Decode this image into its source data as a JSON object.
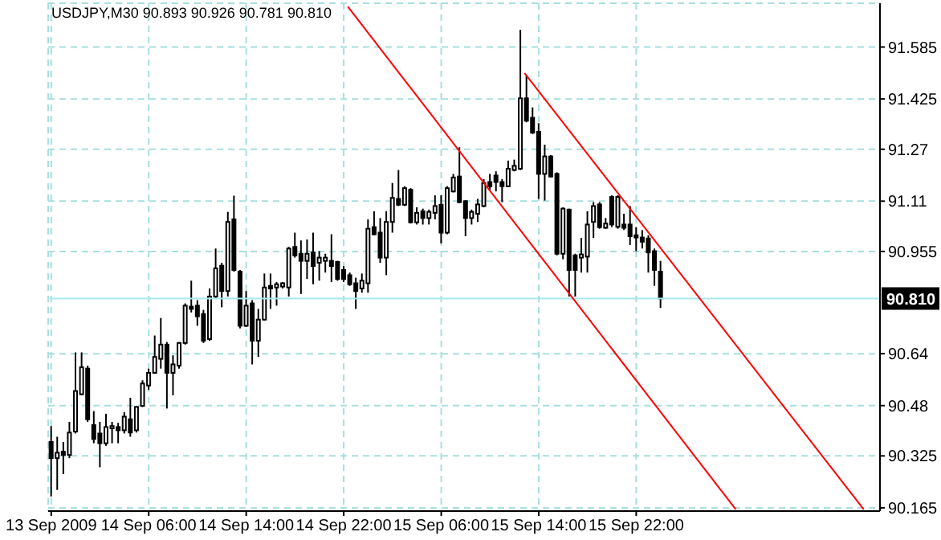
{
  "chart_data": {
    "type": "candlestick",
    "title": "USDJPY,M30 90.893 90.926 90.781 90.810",
    "color": "#000000",
    "x": [
      "2009-09-13T22:00",
      "2009-09-13T22:30",
      "2009-09-13T23:00",
      "2009-09-13T23:30",
      "2009-09-14T00:00",
      "2009-09-14T00:30",
      "2009-09-14T01:00",
      "2009-09-14T01:30",
      "2009-09-14T02:00",
      "2009-09-14T02:30",
      "2009-09-14T03:00",
      "2009-09-14T03:30",
      "2009-09-14T04:00",
      "2009-09-14T04:30",
      "2009-09-14T05:00",
      "2009-09-14T05:30",
      "2009-09-14T06:00",
      "2009-09-14T06:30",
      "2009-09-14T07:00",
      "2009-09-14T07:30",
      "2009-09-14T08:00",
      "2009-09-14T08:30",
      "2009-09-14T09:00",
      "2009-09-14T09:30",
      "2009-09-14T10:00",
      "2009-09-14T10:30",
      "2009-09-14T11:00",
      "2009-09-14T11:30",
      "2009-09-14T12:00",
      "2009-09-14T12:30",
      "2009-09-14T13:00",
      "2009-09-14T13:30",
      "2009-09-14T14:00",
      "2009-09-14T14:30",
      "2009-09-14T15:00",
      "2009-09-14T15:30",
      "2009-09-14T16:00",
      "2009-09-14T16:30",
      "2009-09-14T17:00",
      "2009-09-14T17:30",
      "2009-09-14T18:00",
      "2009-09-14T18:30",
      "2009-09-14T19:00",
      "2009-09-14T19:30",
      "2009-09-14T20:00",
      "2009-09-14T20:30",
      "2009-09-14T21:00",
      "2009-09-14T21:30",
      "2009-09-14T22:00",
      "2009-09-14T22:30",
      "2009-09-14T23:00",
      "2009-09-14T23:30",
      "2009-09-15T00:00",
      "2009-09-15T00:30",
      "2009-09-15T01:00",
      "2009-09-15T01:30",
      "2009-09-15T02:00",
      "2009-09-15T02:30",
      "2009-09-15T03:00",
      "2009-09-15T03:30",
      "2009-09-15T04:00",
      "2009-09-15T04:30",
      "2009-09-15T05:00",
      "2009-09-15T05:30",
      "2009-09-15T06:00",
      "2009-09-15T06:30",
      "2009-09-15T07:00",
      "2009-09-15T07:30",
      "2009-09-15T08:00",
      "2009-09-15T08:30",
      "2009-09-15T09:00",
      "2009-09-15T09:30",
      "2009-09-15T10:00",
      "2009-09-15T10:30",
      "2009-09-15T11:00",
      "2009-09-15T11:30",
      "2009-09-15T12:00",
      "2009-09-15T12:30",
      "2009-09-15T13:00",
      "2009-09-15T13:30",
      "2009-09-15T14:00",
      "2009-09-15T14:30",
      "2009-09-15T15:00",
      "2009-09-15T15:30",
      "2009-09-15T16:00",
      "2009-09-15T16:30",
      "2009-09-15T17:00",
      "2009-09-15T17:30",
      "2009-09-15T18:00",
      "2009-09-15T18:30",
      "2009-09-15T19:00",
      "2009-09-15T19:30",
      "2009-09-15T20:00",
      "2009-09-15T20:30",
      "2009-09-15T21:00",
      "2009-09-15T21:30",
      "2009-09-15T22:00",
      "2009-09-15T22:30",
      "2009-09-15T23:00",
      "2009-09-15T23:30",
      "2009-09-16T00:00"
    ],
    "ohlc": [
      [
        90.368,
        90.417,
        90.2,
        90.318
      ],
      [
        90.318,
        90.384,
        90.22,
        90.335
      ],
      [
        90.338,
        90.368,
        90.269,
        90.328
      ],
      [
        90.328,
        90.43,
        90.318,
        90.397
      ],
      [
        90.4,
        90.644,
        90.394,
        90.525
      ],
      [
        90.515,
        90.644,
        90.512,
        90.598
      ],
      [
        90.594,
        90.603,
        90.43,
        90.438
      ],
      [
        90.42,
        90.463,
        90.364,
        90.377
      ],
      [
        90.394,
        90.43,
        90.29,
        90.364
      ],
      [
        90.364,
        90.455,
        90.356,
        90.414
      ],
      [
        90.41,
        90.43,
        90.364,
        90.417
      ],
      [
        90.414,
        90.427,
        90.364,
        90.404
      ],
      [
        90.404,
        90.46,
        90.394,
        90.446
      ],
      [
        90.438,
        90.504,
        90.384,
        90.397
      ],
      [
        90.404,
        90.479,
        90.397,
        90.476
      ],
      [
        90.479,
        90.558,
        90.476,
        90.548
      ],
      [
        90.542,
        90.594,
        90.529,
        90.581
      ],
      [
        90.581,
        90.696,
        90.578,
        90.63
      ],
      [
        90.624,
        90.75,
        90.594,
        90.668
      ],
      [
        90.668,
        90.676,
        90.471,
        90.581
      ],
      [
        90.581,
        90.635,
        90.512,
        90.607
      ],
      [
        90.603,
        90.676,
        90.594,
        90.673
      ],
      [
        90.673,
        90.795,
        90.668,
        90.788
      ],
      [
        90.785,
        90.865,
        90.767,
        90.778
      ],
      [
        90.788,
        90.805,
        90.726,
        90.755
      ],
      [
        90.762,
        90.775,
        90.673,
        90.68
      ],
      [
        90.685,
        90.841,
        90.68,
        90.816
      ],
      [
        90.816,
        90.964,
        90.811,
        90.903
      ],
      [
        90.911,
        90.92,
        90.783,
        90.833
      ],
      [
        90.833,
        91.077,
        90.816,
        91.046
      ],
      [
        91.054,
        91.127,
        90.893,
        90.898
      ],
      [
        90.893,
        90.898,
        90.718,
        90.726
      ],
      [
        90.726,
        90.833,
        90.722,
        90.788
      ],
      [
        90.795,
        90.805,
        90.607,
        90.68
      ],
      [
        90.68,
        90.778,
        90.63,
        90.745
      ],
      [
        90.745,
        90.887,
        90.742,
        90.844
      ],
      [
        90.849,
        90.887,
        90.778,
        90.841
      ],
      [
        90.844,
        90.861,
        90.788,
        90.854
      ],
      [
        90.847,
        90.861,
        90.841,
        90.857
      ],
      [
        90.844,
        90.969,
        90.816,
        90.964
      ],
      [
        90.969,
        91.013,
        90.936,
        90.943
      ],
      [
        90.948,
        90.989,
        90.824,
        90.926
      ],
      [
        90.926,
        90.992,
        90.87,
        90.948
      ],
      [
        90.952,
        91.013,
        90.854,
        90.91
      ],
      [
        90.92,
        90.956,
        90.865,
        90.936
      ],
      [
        90.926,
        90.948,
        90.89,
        90.936
      ],
      [
        90.926,
        91.008,
        90.861,
        90.91
      ],
      [
        90.923,
        90.926,
        90.865,
        90.87
      ],
      [
        90.898,
        90.91,
        90.861,
        90.87
      ],
      [
        90.882,
        90.89,
        90.849,
        90.854
      ],
      [
        90.857,
        90.874,
        90.778,
        90.833
      ],
      [
        90.841,
        90.887,
        90.828,
        90.865
      ],
      [
        90.857,
        91.054,
        90.828,
        91.025
      ],
      [
        91.03,
        91.079,
        91.005,
        91.008
      ],
      [
        91.013,
        91.058,
        90.92,
        90.936
      ],
      [
        90.936,
        91.079,
        90.882,
        91.046
      ],
      [
        91.046,
        91.166,
        91.013,
        91.12
      ],
      [
        91.117,
        91.206,
        91.095,
        91.099
      ],
      [
        91.099,
        91.156,
        91.095,
        91.15
      ],
      [
        91.145,
        91.15,
        91.041,
        91.045
      ],
      [
        91.045,
        91.091,
        91.038,
        91.074
      ],
      [
        91.079,
        91.087,
        91.038,
        91.058
      ],
      [
        91.058,
        91.084,
        91.038,
        91.077
      ],
      [
        91.074,
        91.128,
        91.054,
        91.095
      ],
      [
        91.099,
        91.128,
        90.98,
        91.013
      ],
      [
        91.013,
        91.156,
        91.008,
        91.15
      ],
      [
        91.14,
        91.194,
        91.137,
        91.183
      ],
      [
        91.186,
        91.276,
        91.104,
        91.107
      ],
      [
        91.11,
        91.113,
        91.002,
        91.058
      ],
      [
        91.058,
        91.084,
        91.038,
        91.077
      ],
      [
        91.071,
        91.117,
        91.046,
        91.1
      ],
      [
        91.095,
        91.178,
        91.091,
        91.166
      ],
      [
        91.169,
        91.194,
        91.145,
        91.156
      ],
      [
        91.189,
        91.202,
        91.14,
        91.169
      ],
      [
        91.169,
        91.178,
        91.107,
        91.156
      ],
      [
        91.156,
        91.235,
        91.153,
        91.21
      ],
      [
        91.206,
        91.238,
        91.202,
        91.219
      ],
      [
        91.21,
        91.638,
        91.206,
        91.427
      ],
      [
        91.427,
        91.498,
        91.353,
        91.358
      ],
      [
        91.367,
        91.399,
        91.317,
        91.321
      ],
      [
        91.324,
        91.35,
        91.117,
        91.194
      ],
      [
        91.194,
        91.284,
        91.112,
        91.248
      ],
      [
        91.248,
        91.252,
        91.183,
        91.186
      ],
      [
        91.194,
        91.199,
        90.943,
        90.948
      ],
      [
        90.948,
        91.091,
        90.931,
        91.087
      ],
      [
        91.084,
        91.087,
        90.816,
        90.898
      ],
      [
        90.943,
        90.948,
        90.816,
        90.898
      ],
      [
        90.936,
        90.997,
        90.89,
        90.946
      ],
      [
        90.939,
        91.079,
        90.89,
        91.038
      ],
      [
        91.046,
        91.107,
        90.997,
        91.095
      ],
      [
        91.1,
        91.107,
        91.025,
        91.03
      ],
      [
        91.028,
        91.058,
        91.025,
        91.041
      ],
      [
        91.123,
        91.128,
        91.03,
        91.038
      ],
      [
        91.031,
        91.128,
        91.025,
        91.123
      ],
      [
        91.038,
        91.071,
        91.021,
        91.028
      ],
      [
        91.038,
        91.095,
        90.975,
        91.002
      ],
      [
        91.005,
        91.03,
        90.956,
        90.998
      ],
      [
        90.998,
        91.021,
        90.964,
        90.985
      ],
      [
        90.995,
        91.005,
        90.89,
        90.952
      ],
      [
        90.956,
        90.964,
        90.849,
        90.898
      ],
      [
        90.893,
        90.926,
        90.781,
        90.81
      ]
    ],
    "series": [
      {
        "type": "line",
        "color": "#ff0000",
        "x": [
          "2009-09-14T22:20",
          "2009-09-16T06:10"
        ],
        "values": [
          91.71,
          90.16
        ]
      },
      {
        "type": "line",
        "color": "#ff0000",
        "x": [
          "2009-09-15T12:50",
          "2009-09-16T16:40"
        ],
        "values": [
          91.505,
          90.16
        ]
      }
    ],
    "xlim": [
      "2009-09-13T21:45",
      "2009-09-16T18:00"
    ],
    "xticks": [
      {
        "value": "2009-09-13T22:00",
        "label": "13 Sep 2009"
      },
      {
        "value": "2009-09-14T06:00",
        "label": "14 Sep 06:00"
      },
      {
        "value": "2009-09-14T14:00",
        "label": "14 Sep 14:00"
      },
      {
        "value": "2009-09-14T22:00",
        "label": "14 Sep 22:00"
      },
      {
        "value": "2009-09-15T06:00",
        "label": "15 Sep 06:00"
      },
      {
        "value": "2009-09-15T14:00",
        "label": "15 Sep 14:00"
      },
      {
        "value": "2009-09-15T22:00",
        "label": "15 Sep 22:00"
      }
    ],
    "ylim": [
      90.155,
      91.72
    ],
    "yticks": [
      90.165,
      90.325,
      90.48,
      90.64,
      90.955,
      91.11,
      91.27,
      91.425,
      91.585
    ],
    "grid": true,
    "ref_lines": [
      {
        "axis": "y",
        "value": 90.81,
        "label": "90.810",
        "color": "#a8e8e8"
      }
    ]
  }
}
